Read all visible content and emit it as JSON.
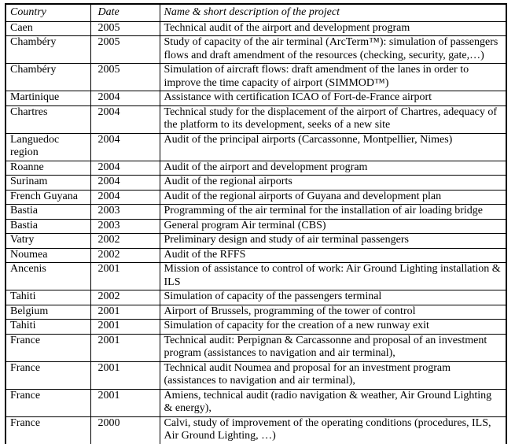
{
  "table": {
    "columns": {
      "country": "Country",
      "date": "Date",
      "description": "Name & short description of the project"
    },
    "rows": [
      {
        "country": "Caen",
        "date": "2005",
        "description": "Technical audit of the airport and development program"
      },
      {
        "country": "Chambéry",
        "date": "2005",
        "description": "Study of capacity of the air terminal (ArcTerm™): simulation of passengers flows and draft amendment of the resources (checking, security, gate,…)"
      },
      {
        "country": "Chambéry",
        "date": "2005",
        "description": "Simulation of aircraft flows: draft amendment of the lanes in order to improve the time capacity of airport (SIMMOD™)"
      },
      {
        "country": "Martinique",
        "date": "2004",
        "description": "Assistance with certification ICAO of Fort-de-France airport"
      },
      {
        "country": "Chartres",
        "date": "2004",
        "description": "Technical study for the displacement of the airport of Chartres, adequacy of the platform to its development, seeks of a new site"
      },
      {
        "country": "Languedoc region",
        "date": "2004",
        "description": "Audit of the principal airports (Carcassonne, Montpellier, Nimes)"
      },
      {
        "country": "Roanne",
        "date": "2004",
        "description": "Audit of the airport and development program"
      },
      {
        "country": "Surinam",
        "date": "2004",
        "description": "Audit of the regional airports"
      },
      {
        "country": "French Guyana",
        "date": "2004",
        "description": "Audit of the regional airports of Guyana and development plan"
      },
      {
        "country": "Bastia",
        "date": "2003",
        "description": "Programming of the air terminal for the installation of air loading bridge"
      },
      {
        "country": "Bastia",
        "date": "2003",
        "description": "General program Air terminal (CBS)"
      },
      {
        "country": "Vatry",
        "date": "2002",
        "description": "Preliminary design and study of air terminal passengers"
      },
      {
        "country": "Noumea",
        "date": "2002",
        "description": "Audit of the RFFS"
      },
      {
        "country": "Ancenis",
        "date": "2001",
        "description": "Mission of assistance to control of work: Air Ground Lighting installation & ILS"
      },
      {
        "country": "Tahiti",
        "date": "2002",
        "description": "Simulation of capacity of the passengers terminal"
      },
      {
        "country": "Belgium",
        "date": "2001",
        "description": "Airport of Brussels, programming of the tower of control"
      },
      {
        "country": "Tahiti",
        "date": "2001",
        "description": "Simulation of capacity for the creation of a new runway exit"
      },
      {
        "country": "France",
        "date": "2001",
        "description": "Technical audit: Perpignan & Carcassonne and proposal of an investment program (assistances to navigation and air terminal),"
      },
      {
        "country": "France",
        "date": "2001",
        "description": "Technical audit Noumea and proposal for an investment program (assistances to navigation and air terminal),"
      },
      {
        "country": "France",
        "date": "2001",
        "description": "Amiens, technical audit (radio navigation & weather, Air Ground Lighting & energy),"
      },
      {
        "country": "France",
        "date": "2000",
        "description": "Calvi, study of improvement of the operating conditions (procedures, ILS, Air Ground Lighting, …)"
      }
    ]
  }
}
